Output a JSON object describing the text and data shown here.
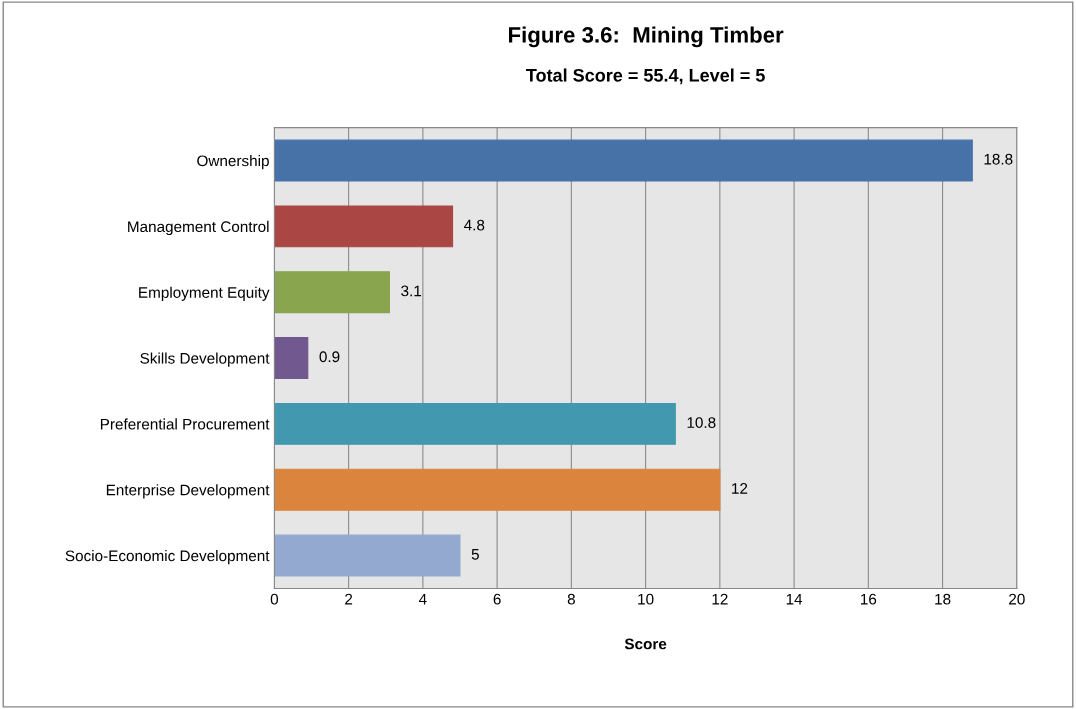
{
  "chart_data": {
    "type": "bar",
    "orientation": "horizontal",
    "title": "Figure 3.6:  Mining Timber",
    "subtitle": "Total Score = 55.4, Level = 5",
    "xlabel": "Score",
    "categories": [
      "Ownership",
      "Management Control",
      "Employment Equity",
      "Skills Development",
      "Preferential Procurement",
      "Enterprise Development",
      "Socio-Economic Development"
    ],
    "values": [
      18.8,
      4.8,
      3.1,
      0.9,
      10.8,
      12,
      5
    ],
    "colors": [
      "#4672a8",
      "#aa4744",
      "#89a54e",
      "#71588f",
      "#4198af",
      "#db843d",
      "#93a9cf"
    ],
    "xlim": [
      0,
      20
    ],
    "xticks": [
      0,
      2,
      4,
      6,
      8,
      10,
      12,
      14,
      16,
      18,
      20
    ],
    "grid": "x",
    "data_labels": true
  }
}
